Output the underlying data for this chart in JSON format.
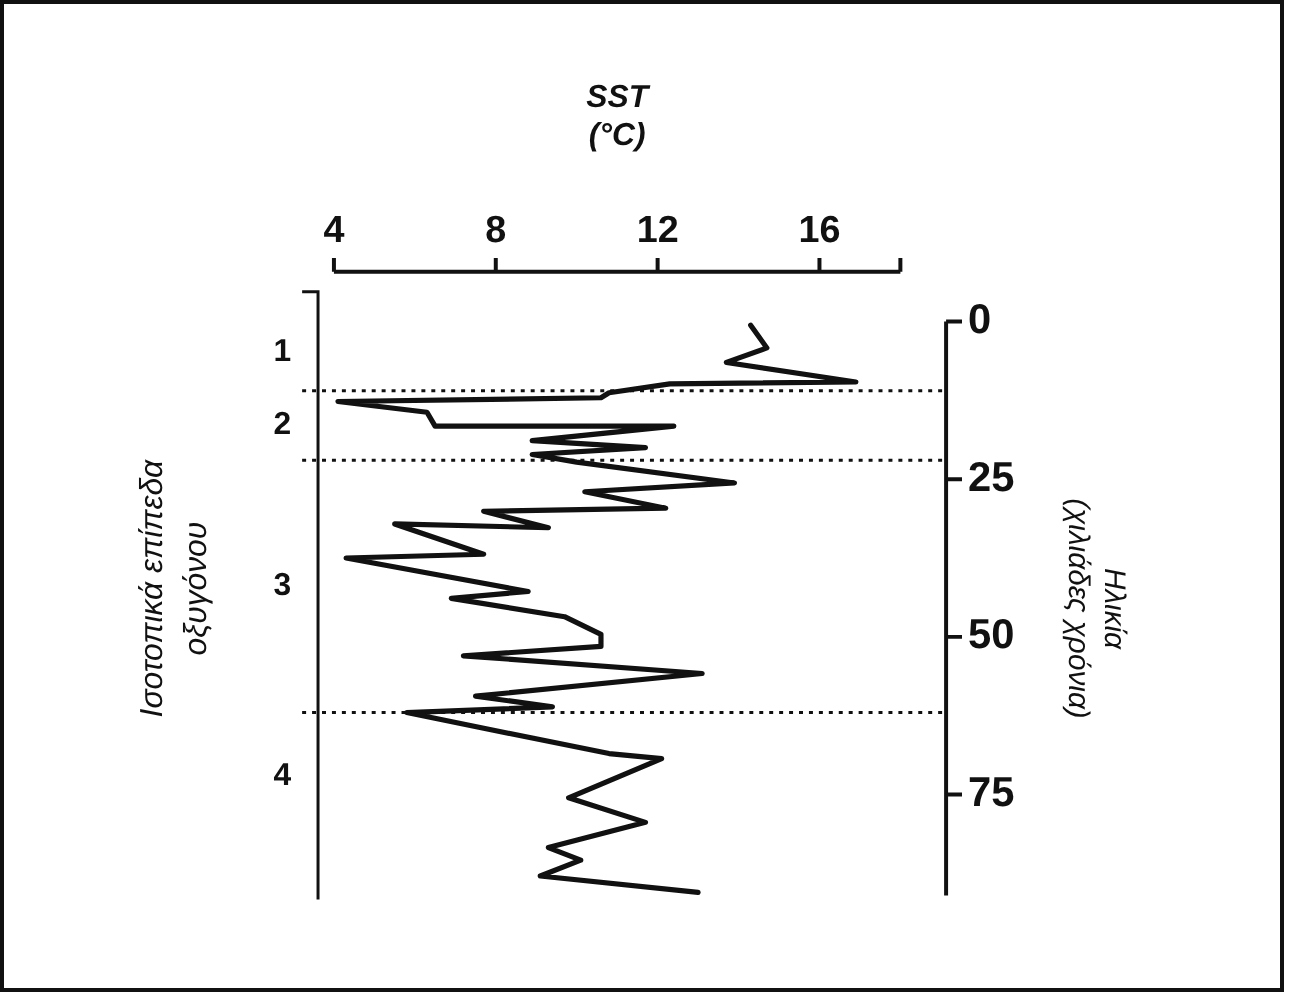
{
  "chart_data": {
    "type": "line",
    "xlabel": "SST (°C)",
    "ylabel": "Ηλικία (χιλιάδες χρόνια)",
    "xlim": [
      4,
      18
    ],
    "xticks": [
      4,
      8,
      12,
      16
    ],
    "ylim": [
      91,
      0
    ],
    "yticks": [
      0,
      25,
      50,
      75
    ],
    "annotations": [
      "Ισοτοπικά επίπεδα οξυγόνου",
      "1",
      "2",
      "3",
      "4"
    ],
    "ref_lines": [
      {
        "axis": "y",
        "value": 11,
        "line_style": "dotted"
      },
      {
        "axis": "y",
        "value": 22,
        "line_style": "dotted"
      },
      {
        "axis": "y",
        "value": 62,
        "line_style": "dotted"
      }
    ],
    "marker": "none",
    "line_style": "solid",
    "series": [
      {
        "color": "#111111",
        "x": [
          14.3,
          14.7,
          13.7,
          16.9,
          12.3,
          10.8,
          10.6,
          4.1,
          6.3,
          6.5,
          12.4,
          8.9,
          11.7,
          8.9,
          10.0,
          13.9,
          10.2,
          12.2,
          7.7,
          9.3,
          5.5,
          7.7,
          4.3,
          8.8,
          6.9,
          9.7,
          10.6,
          10.6,
          7.2,
          13.1,
          7.5,
          9.4,
          5.8,
          10.8,
          12.1,
          9.8,
          11.7,
          9.3,
          10.1,
          9.1,
          13.0
        ],
        "values": [
          0.6,
          4.2,
          6.5,
          9.6,
          9.9,
          11.3,
          12.1,
          12.7,
          14.4,
          16.6,
          16.6,
          18.9,
          20,
          21.1,
          22.3,
          25.6,
          27,
          29.6,
          30.1,
          32.7,
          32.1,
          36.9,
          37.5,
          42.8,
          43.9,
          46.8,
          49.6,
          51.5,
          53,
          55.8,
          59.4,
          61.1,
          62,
          68.5,
          69.3,
          75.5,
          79.4,
          83.4,
          85.4,
          87.9,
          90.5
        ]
      }
    ]
  }
}
